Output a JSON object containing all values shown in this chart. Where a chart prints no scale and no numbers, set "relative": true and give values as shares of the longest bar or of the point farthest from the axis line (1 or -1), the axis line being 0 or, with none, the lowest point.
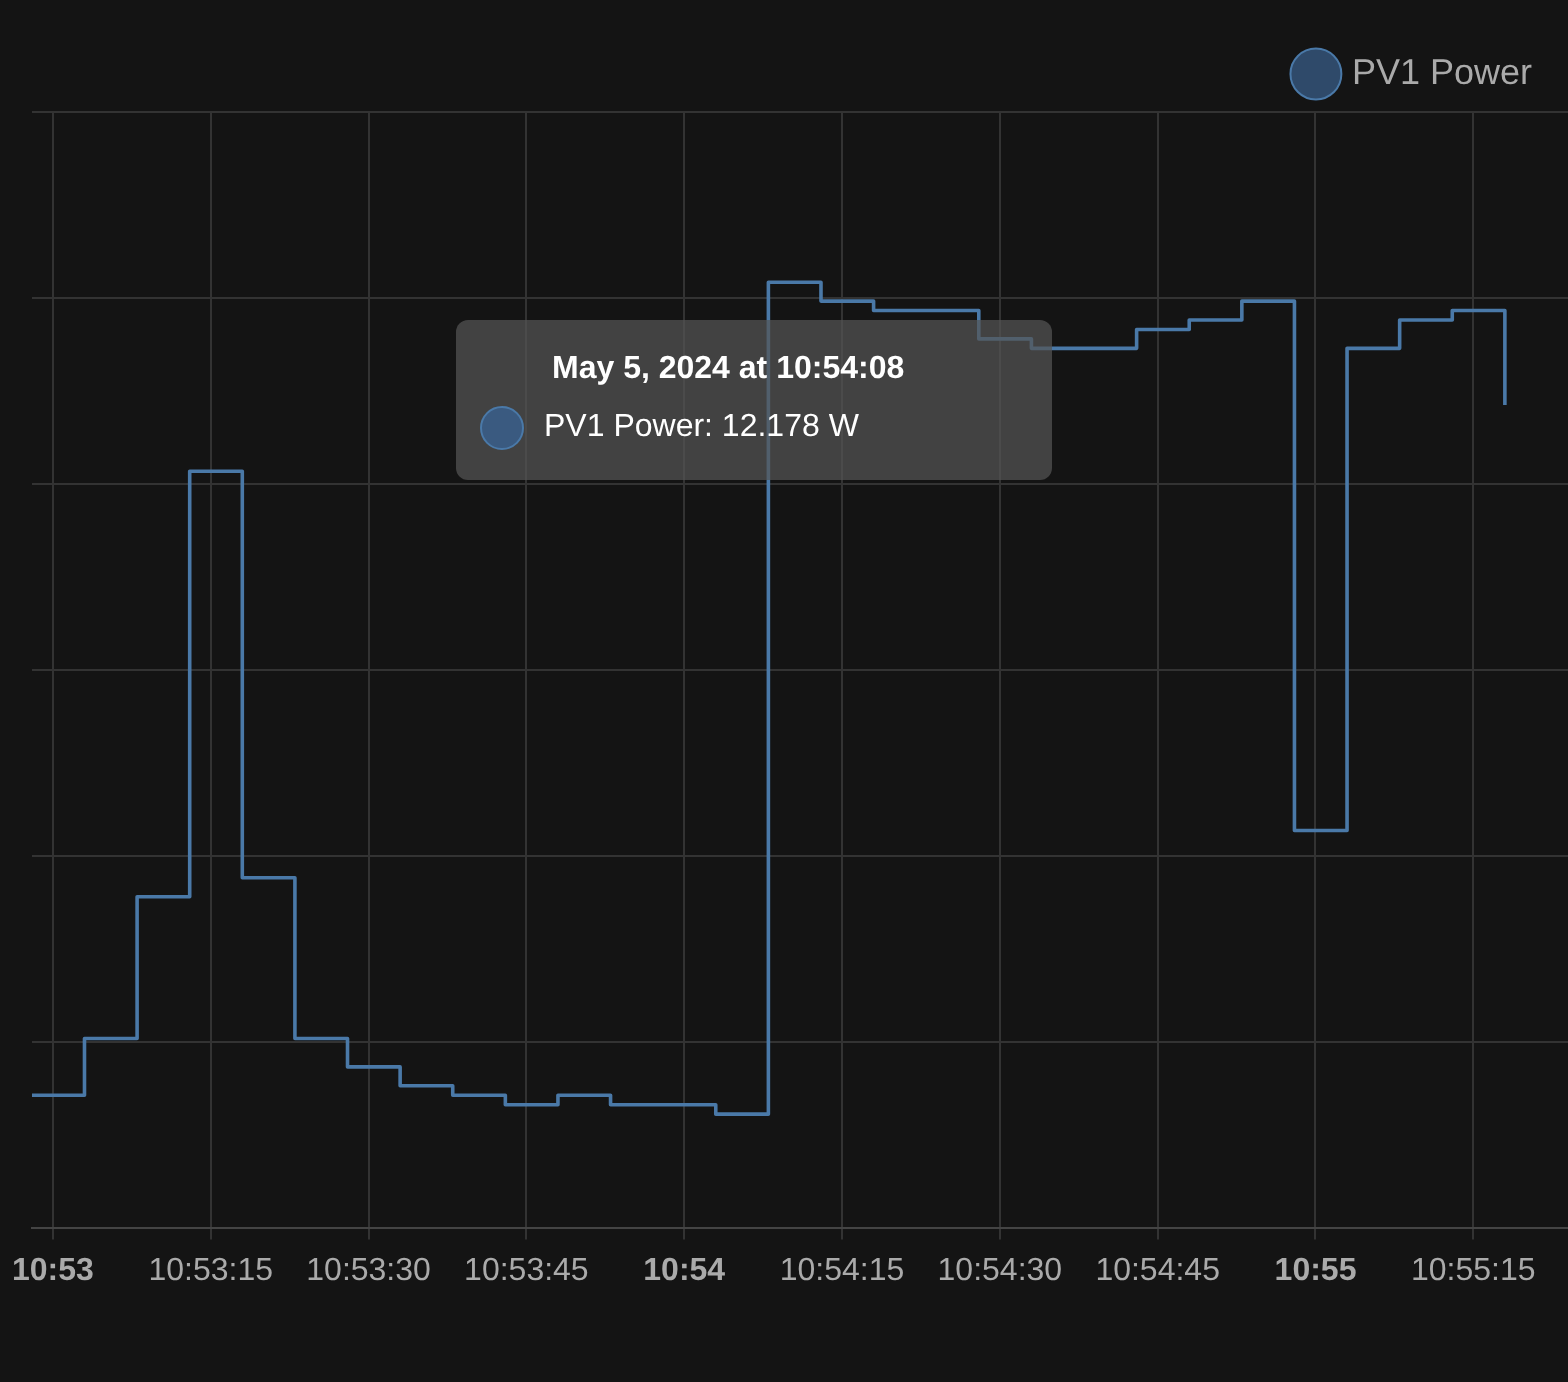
{
  "chart_data": {
    "type": "step",
    "relative": true,
    "x": [
      "2024-05-05T10:52:58",
      "2024-05-05T10:53:03",
      "2024-05-05T10:53:08",
      "2024-05-05T10:53:13",
      "2024-05-05T10:53:18",
      "2024-05-05T10:53:23",
      "2024-05-05T10:53:28",
      "2024-05-05T10:53:33",
      "2024-05-05T10:53:38",
      "2024-05-05T10:53:43",
      "2024-05-05T10:53:48",
      "2024-05-05T10:53:53",
      "2024-05-05T10:53:58",
      "2024-05-05T10:54:03",
      "2024-05-05T10:54:08",
      "2024-05-05T10:54:13",
      "2024-05-05T10:54:18",
      "2024-05-05T10:54:23",
      "2024-05-05T10:54:28",
      "2024-05-05T10:54:33",
      "2024-05-05T10:54:38",
      "2024-05-05T10:54:43",
      "2024-05-05T10:54:48",
      "2024-05-05T10:54:53",
      "2024-05-05T10:54:58",
      "2024-05-05T10:55:03",
      "2024-05-05T10:55:08",
      "2024-05-05T10:55:13",
      "2024-05-05T10:55:18"
    ],
    "series": [
      {
        "name": "PV1 Power",
        "color": "#4a79a8",
        "values": [
          0.14,
          0.2,
          0.35,
          0.8,
          0.37,
          0.2,
          0.17,
          0.15,
          0.14,
          0.13,
          0.14,
          0.13,
          0.13,
          0.12,
          1,
          0.98,
          0.97,
          0.97,
          0.94,
          0.93,
          0.93,
          0.95,
          0.96,
          0.98,
          0.42,
          0.93,
          0.96,
          0.97,
          0.87
        ]
      }
    ],
    "xlim": [
      "2024-05-05T10:52:58",
      "2024-05-05T10:55:24"
    ],
    "xticks": [
      {
        "value": "2024-05-05T10:53:00",
        "label": "10:53"
      },
      {
        "value": "2024-05-05T10:53:15",
        "label": "10:53:15"
      },
      {
        "value": "2024-05-05T10:53:30",
        "label": "10:53:30"
      },
      {
        "value": "2024-05-05T10:53:45",
        "label": "10:53:45"
      },
      {
        "value": "2024-05-05T10:54:00",
        "label": "10:54"
      },
      {
        "value": "2024-05-05T10:54:15",
        "label": "10:54:15"
      },
      {
        "value": "2024-05-05T10:54:30",
        "label": "10:54:30"
      },
      {
        "value": "2024-05-05T10:54:45",
        "label": "10:54:45"
      },
      {
        "value": "2024-05-05T10:55:00",
        "label": "10:55"
      },
      {
        "value": "2024-05-05T10:55:15",
        "label": "10:55:15"
      }
    ],
    "annotations": [
      "May 5, 2024 at 10:54:08",
      "PV1 Power: 12.178 W"
    ],
    "grid": true,
    "legend": "top right",
    "marker": "none",
    "line_style": "solid"
  }
}
